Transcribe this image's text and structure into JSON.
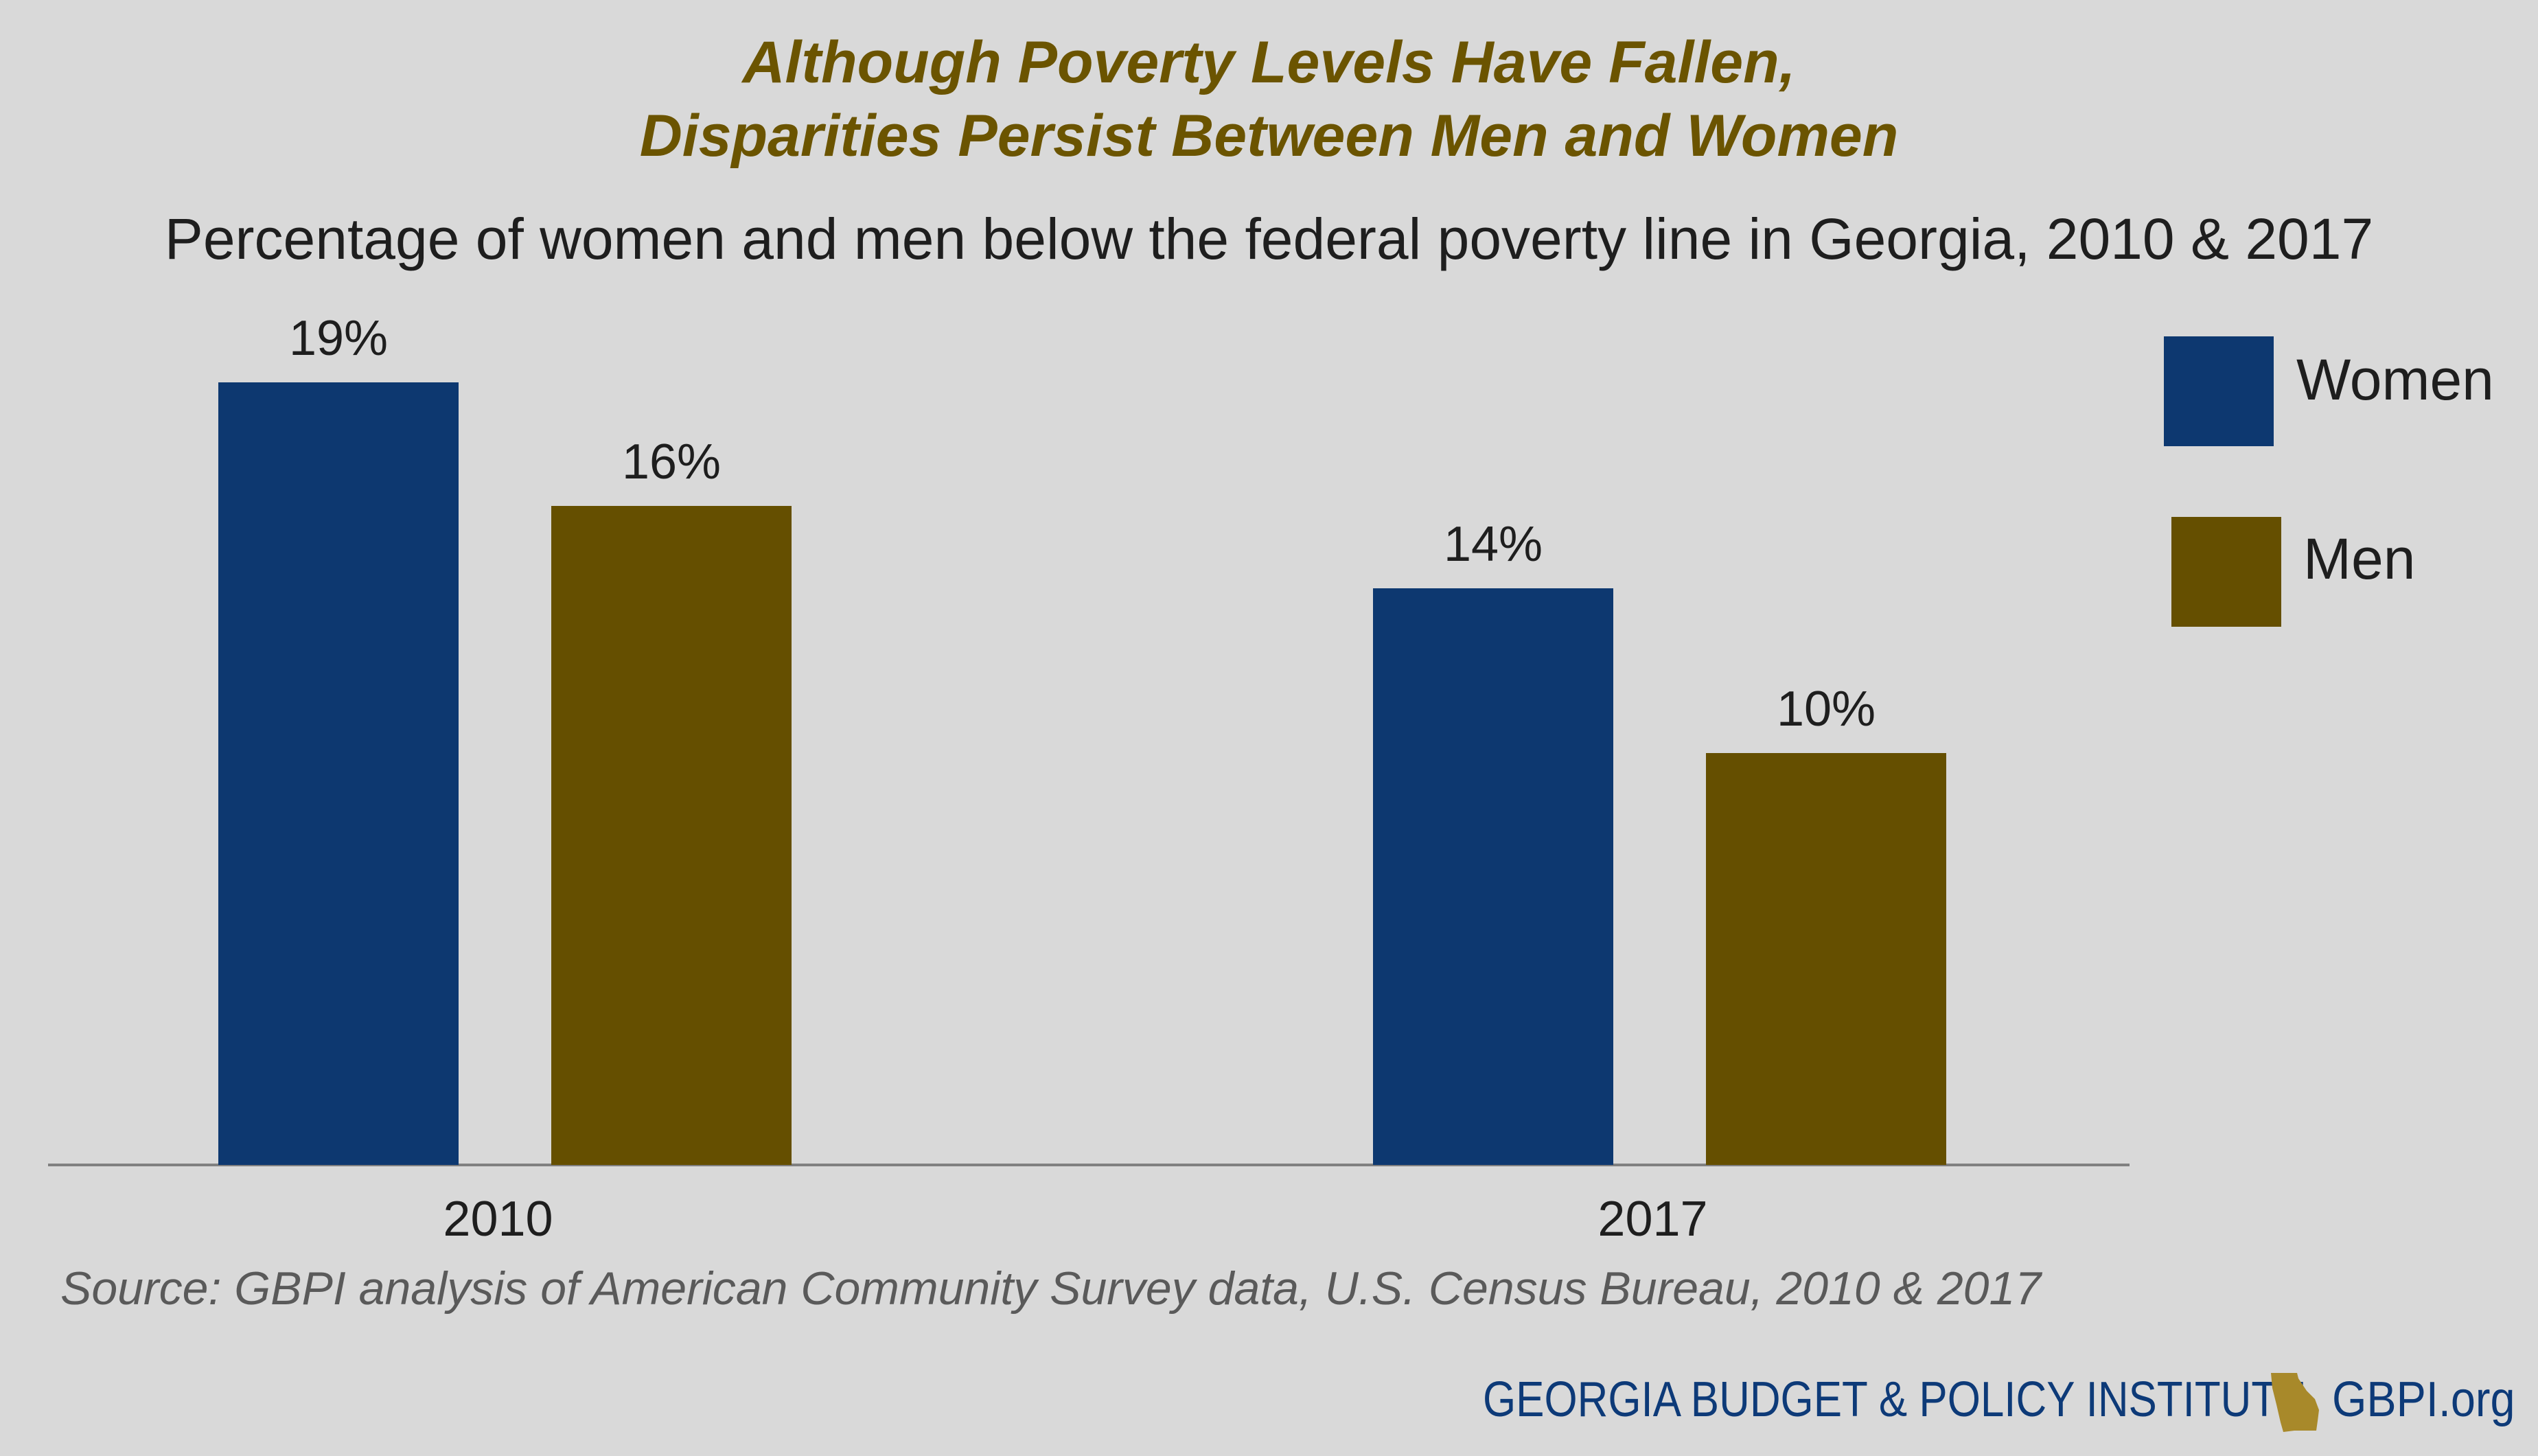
{
  "title_lines": [
    "Although Poverty Levels Have Fallen,",
    "Disparities Persist Between Men and Women"
  ],
  "subtitle": "Percentage of women and men below the federal poverty line in Georgia, 2010 & 2017",
  "source": "Source: GBPI analysis of American Community Survey data, U.S. Census Bureau, 2010 & 2017",
  "footer": {
    "organization": "GEORGIA BUDGET & POLICY INSTITUTE",
    "url": "GBPI.org",
    "logo_icon": "georgia-state-map-icon"
  },
  "colors": {
    "women": "#0d3870",
    "men": "#654f00",
    "title": "#6b5400",
    "footer": "#0d3a78",
    "background": "#d9d9d9"
  },
  "chart_data": {
    "type": "bar",
    "categories": [
      "2010",
      "2017"
    ],
    "series": [
      {
        "name": "Women",
        "values": [
          19,
          14
        ],
        "labels": [
          "19%",
          "14%"
        ],
        "color": "#0d3870"
      },
      {
        "name": "Men",
        "values": [
          16,
          10
        ],
        "labels": [
          "16%",
          "10%"
        ],
        "color": "#654f00"
      }
    ],
    "ylim": [
      0,
      19
    ],
    "y_axis_shown": false,
    "grid": false,
    "legend_position": "top-right"
  }
}
